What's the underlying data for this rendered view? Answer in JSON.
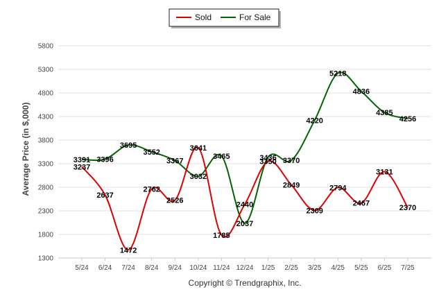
{
  "chart_data": {
    "type": "line",
    "ylabel": "Average Price (in $,000)",
    "categories": [
      "5/24",
      "6/24",
      "7/24",
      "8/24",
      "9/24",
      "10/24",
      "11/24",
      "12/24",
      "1/25",
      "2/25",
      "3/25",
      "4/25",
      "5/25",
      "6/25",
      "7/25"
    ],
    "ylim": [
      1300,
      5800
    ],
    "yticks": [
      1300,
      1800,
      2300,
      2800,
      3300,
      3800,
      4300,
      4800,
      5300,
      5800
    ],
    "grid": true,
    "legend_position": "top-center",
    "series": [
      {
        "name": "Sold",
        "color": "#dd0000",
        "values": [
          3237,
          2637,
          1472,
          2762,
          2526,
          3641,
          1785,
          2440,
          3350,
          2849,
          2309,
          2794,
          2467,
          3131,
          2370
        ]
      },
      {
        "name": "For Sale",
        "color": "#006400",
        "values": [
          3391,
          3396,
          3695,
          3552,
          3367,
          3032,
          3465,
          2037,
          3436,
          3370,
          4220,
          5218,
          4836,
          4385,
          4256
        ]
      }
    ]
  },
  "footer": "Copyright © Trendgraphix, Inc."
}
